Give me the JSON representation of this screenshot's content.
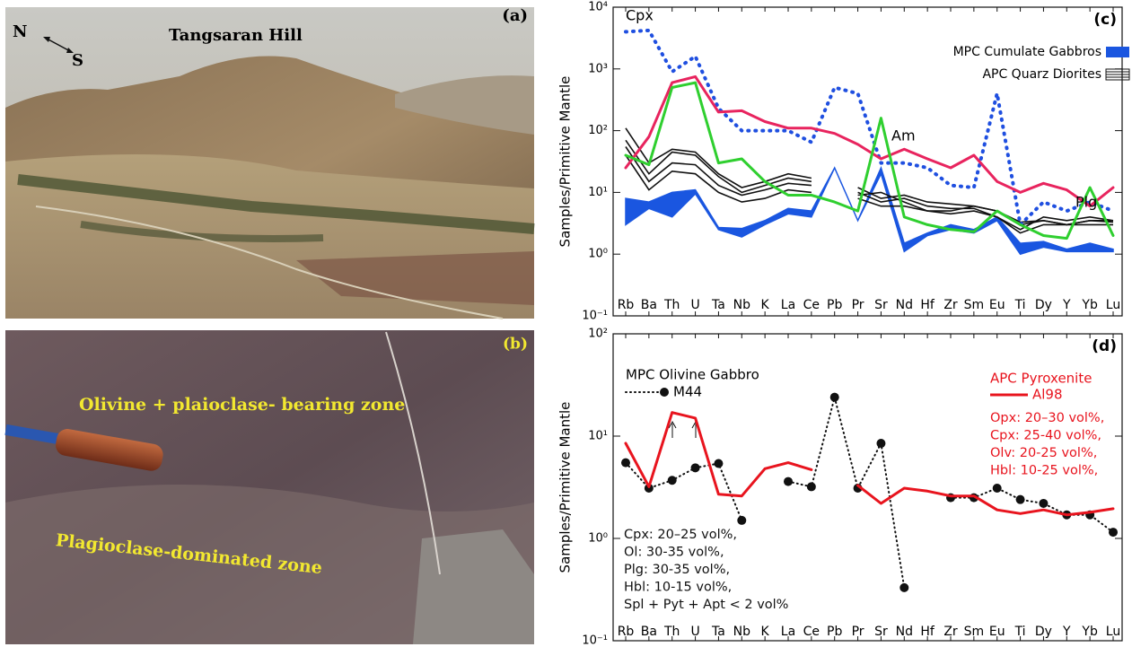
{
  "photo_a": {
    "label": "(a)",
    "title": "Tangsaran Hill",
    "compass": [
      "N",
      "S"
    ]
  },
  "photo_b": {
    "label": "(b)",
    "zones": [
      "Olivine + plaioclase- bearing zone",
      "Plagioclase-dominated zone"
    ]
  },
  "chart_data": [
    {
      "type": "line",
      "panel_label": "(c)",
      "y_label": "Samples/Primitive Mantle",
      "log_y": true,
      "categories": [
        "Rb",
        "Ba",
        "Th",
        "U",
        "Ta",
        "Nb",
        "K",
        "La",
        "Ce",
        "Pb",
        "Pr",
        "Sr",
        "Nd",
        "Hf",
        "Zr",
        "Sm",
        "Eu",
        "Ti",
        "Dy",
        "Y",
        "Yb",
        "Lu"
      ],
      "ylim": [
        0.1,
        10000
      ],
      "yticks": [
        {
          "value": 0.1,
          "label": "10⁻¹"
        },
        {
          "value": 1,
          "label": "10⁰"
        },
        {
          "value": 10,
          "label": "10¹"
        },
        {
          "value": 100,
          "label": "10²"
        },
        {
          "value": 1000,
          "label": "10³"
        },
        {
          "value": 10000,
          "label": "10⁴"
        }
      ],
      "bands": [
        {
          "name": "MPC Cumulate Gabbros",
          "color": "#1a56e0",
          "high": [
            8,
            7,
            10,
            11,
            2.7,
            2.6,
            3.5,
            5.5,
            5,
            25,
            3.5,
            25,
            1.5,
            2.2,
            3,
            2.5,
            4,
            1.5,
            1.6,
            1.2,
            1.5,
            1.2
          ],
          "low": [
            3,
            5.5,
            4,
            9.5,
            2.5,
            1.9,
            3,
            4.5,
            4,
            25,
            3.5,
            20,
            1.1,
            2,
            2.5,
            2.2,
            3.5,
            1,
            1.3,
            1.1,
            1.1,
            1.1
          ]
        }
      ],
      "line_groups": [
        {
          "name": "APC Quarz Diorites",
          "color": "#111111",
          "lines": [
            [
              110,
              30,
              50,
              45,
              20,
              12,
              15,
              20,
              17,
              null,
              12,
              8,
              9,
              7,
              6.5,
              6,
              5,
              3,
              3.5,
              3,
              3.5,
              3.5
            ],
            [
              70,
              20,
              45,
              40,
              18,
              10,
              13,
              17,
              15,
              null,
              10,
              7,
              8,
              6,
              5.5,
              5.5,
              4,
              2.5,
              4,
              3.5,
              4,
              3.5
            ],
            [
              55,
              15,
              30,
              28,
              13,
              9,
              11,
              14,
              13,
              null,
              9,
              10,
              7,
              5,
              5,
              6,
              5,
              3.3,
              3.5,
              3,
              3.5,
              3.3
            ],
            [
              40,
              11,
              22,
              20,
              10,
              7,
              8,
              11,
              10,
              null,
              8,
              6,
              6,
              5,
              4.5,
              5,
              4,
              2.2,
              3,
              3,
              3,
              3
            ]
          ]
        }
      ],
      "series": [
        {
          "name": "Cpx",
          "color": "#1f4fe0",
          "dash": "dotted",
          "values": [
            4000,
            4200,
            900,
            1600,
            230,
            100,
            100,
            100,
            65,
            500,
            400,
            30,
            30,
            25,
            13,
            12,
            400,
            3,
            7,
            5,
            7,
            5
          ]
        },
        {
          "name": "Am",
          "color": "#e8245e",
          "dash": "solid",
          "values": [
            25,
            80,
            600,
            750,
            200,
            210,
            140,
            110,
            110,
            90,
            60,
            35,
            50,
            35,
            25,
            40,
            15,
            10,
            14,
            11,
            6,
            12
          ]
        },
        {
          "name": "Plg",
          "color": "#2fcf2f",
          "dash": "solid",
          "values": [
            40,
            28,
            500,
            600,
            30,
            35,
            15,
            9,
            9,
            7,
            5,
            160,
            4,
            3,
            2.5,
            2.3,
            5,
            3,
            2,
            1.8,
            12,
            2
          ]
        }
      ]
    },
    {
      "type": "line",
      "panel_label": "(d)",
      "y_label": "Samples/Primitive Mantle",
      "log_y": true,
      "categories": [
        "Rb",
        "Ba",
        "Th",
        "U",
        "Ta",
        "Nb",
        "K",
        "La",
        "Ce",
        "Pb",
        "Pr",
        "Sr",
        "Nd",
        "Hf",
        "Zr",
        "Sm",
        "Eu",
        "Ti",
        "Dy",
        "Y",
        "Yb",
        "Lu"
      ],
      "ylim": [
        0.1,
        100
      ],
      "yticks": [
        {
          "value": 0.1,
          "label": "10⁻¹"
        },
        {
          "value": 1,
          "label": "10⁰"
        },
        {
          "value": 10,
          "label": "10¹"
        },
        {
          "value": 100,
          "label": "10²"
        }
      ],
      "series": [
        {
          "name": "M44",
          "group": "MPC Olivine Gabbro",
          "color": "#111111",
          "dash": "dotted",
          "marker": "circle",
          "values": [
            5.5,
            3.1,
            3.7,
            4.9,
            5.4,
            1.5,
            null,
            3.6,
            3.2,
            24,
            3.1,
            8.5,
            0.33,
            null,
            2.5,
            2.5,
            3.1,
            2.4,
            2.2,
            1.7,
            1.7,
            1.15
          ]
        },
        {
          "name": "Al98",
          "group": "APC Pyroxenite",
          "color": "#e8141e",
          "dash": "solid",
          "values": [
            8.5,
            3.2,
            17,
            15,
            2.7,
            2.6,
            4.8,
            5.5,
            4.7,
            null,
            3.3,
            2.2,
            3.1,
            2.9,
            2.6,
            2.6,
            1.9,
            1.75,
            1.9,
            1.7,
            1.8,
            1.95
          ]
        }
      ],
      "annotations": [
        {
          "color": "#111111",
          "lines": [
            "Cpx: 20–25 vol%,",
            "Ol: 30-35 vol%,",
            "Plg: 30-35 vol%,",
            "Hbl: 10-15 vol%,",
            "Spl + Pyt + Apt < 2 vol%"
          ]
        },
        {
          "color": "#e8141e",
          "lines": [
            "Opx: 20–30 vol%,",
            "Cpx: 25-40 vol%,",
            "Olv: 20-25 vol%,",
            "Hbl: 10-25 vol%,"
          ]
        }
      ]
    }
  ]
}
